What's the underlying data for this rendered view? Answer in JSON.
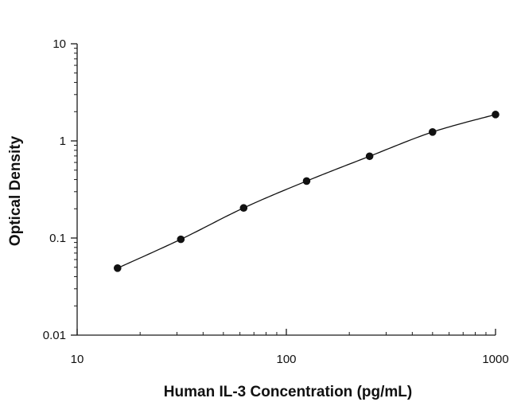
{
  "chart_data": {
    "type": "scatter",
    "title": "",
    "xlabel": "Human IL-3 Concentration (pg/mL)",
    "ylabel": "Optical Density",
    "x_scale": "log",
    "y_scale": "log",
    "xlim": [
      10,
      1000
    ],
    "ylim": [
      0.01,
      10
    ],
    "x_ticks": [
      "10",
      "100",
      "1000"
    ],
    "y_ticks": [
      "0.01",
      "0.1",
      "1",
      "10"
    ],
    "grid": false,
    "legend": "none",
    "fit_curve": true,
    "series": [
      {
        "x": [
          15.6,
          31.3,
          62.5,
          125,
          250,
          500,
          1000
        ],
        "y": [
          0.049,
          0.097,
          0.204,
          0.386,
          0.695,
          1.235,
          1.87
        ]
      }
    ]
  },
  "colors": {
    "axis": "#1a1a1a",
    "marker": "#111111",
    "curve": "#111111",
    "background": "#ffffff"
  }
}
